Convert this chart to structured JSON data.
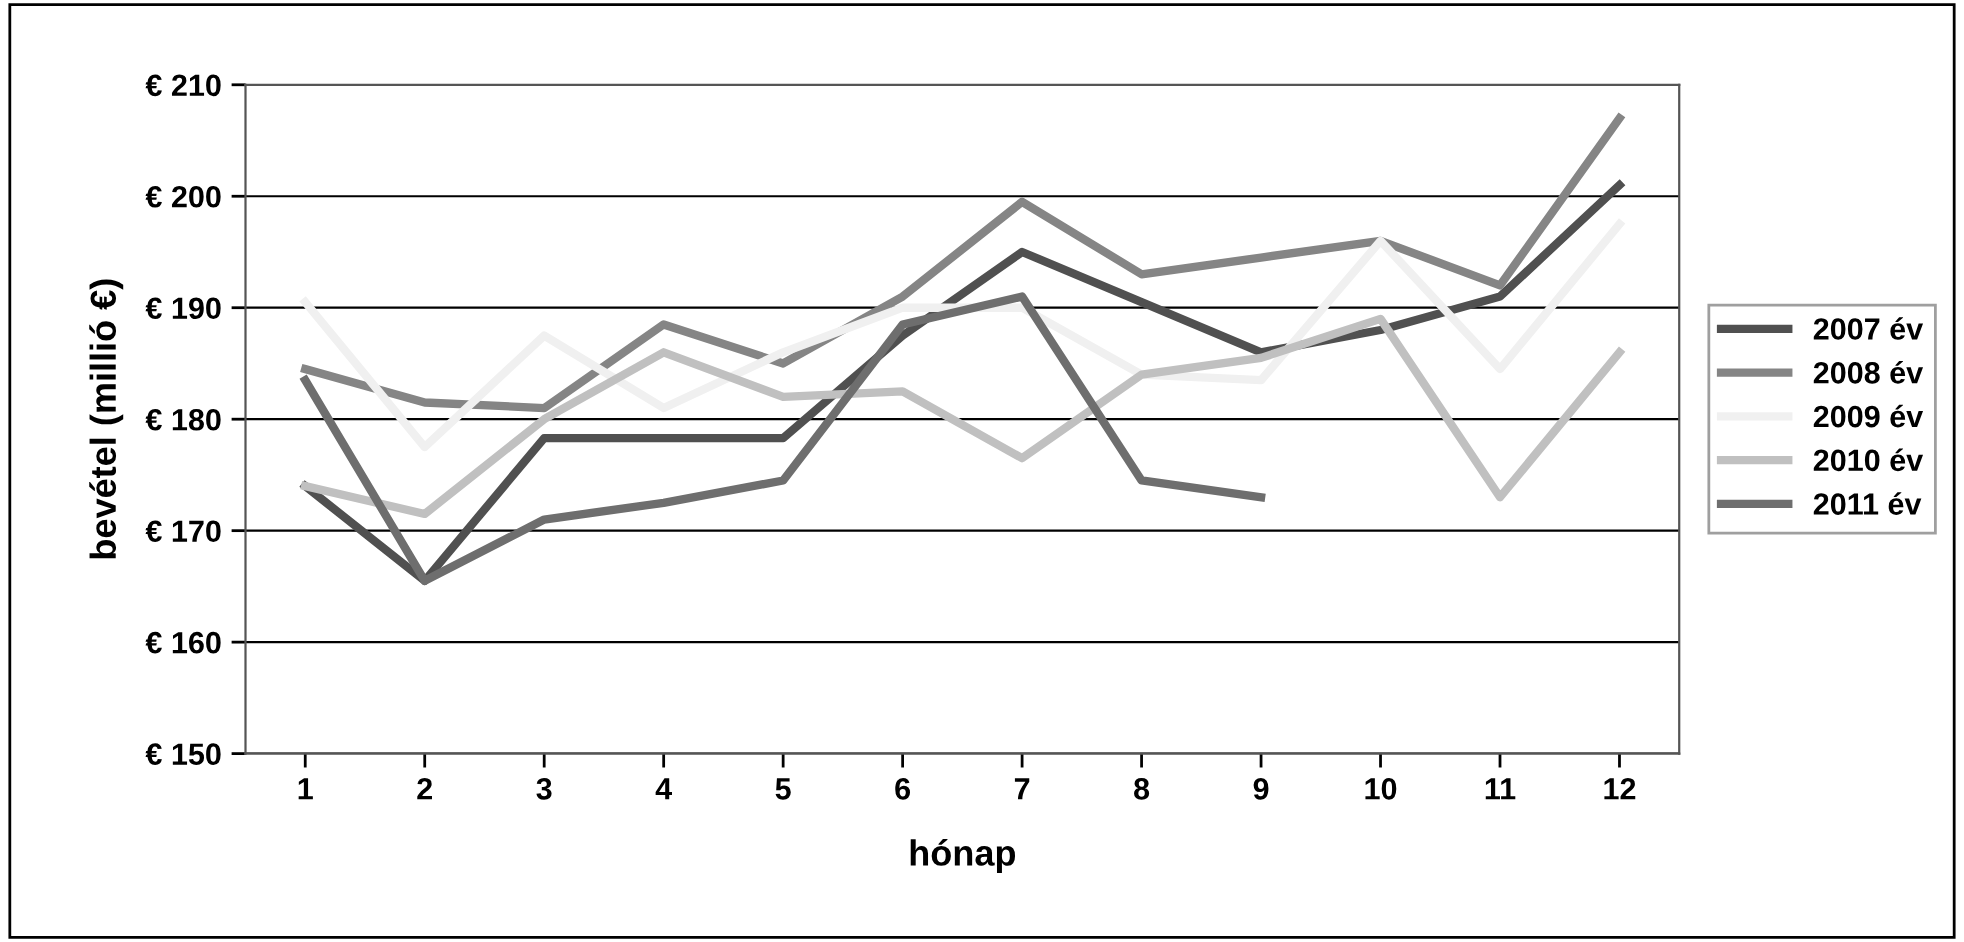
{
  "chart_data": {
    "type": "line",
    "xlabel": "hónap",
    "ylabel": "bevétel (millió €)",
    "categories": [
      "1",
      "2",
      "3",
      "4",
      "5",
      "6",
      "7",
      "8",
      "9",
      "10",
      "11",
      "12"
    ],
    "series": [
      {
        "name": "2007 év",
        "color": "#505050",
        "values": [
          174,
          165.5,
          178.3,
          178.3,
          178.3,
          187.5,
          195,
          190.5,
          186,
          188,
          191,
          201
        ]
      },
      {
        "name": "2008 év",
        "color": "#858585",
        "values": [
          184.5,
          181.5,
          181,
          188.5,
          185,
          191,
          199.5,
          193,
          194.5,
          196,
          192,
          207
        ]
      },
      {
        "name": "2009 év",
        "color": "#f0f0f0",
        "values": [
          190.5,
          177.5,
          187.5,
          181,
          186,
          190,
          190,
          184,
          183.5,
          196,
          184.5,
          197.5
        ]
      },
      {
        "name": "2010 év",
        "color": "#c0c0c0",
        "values": [
          174,
          171.5,
          180,
          186,
          182,
          182.5,
          176.5,
          184,
          185.5,
          189,
          173,
          186
        ]
      },
      {
        "name": "2011 év",
        "color": "#6e6e6e",
        "values": [
          183.5,
          165.5,
          171,
          172.5,
          174.5,
          188.5,
          191,
          174.5,
          173,
          null,
          null,
          null
        ]
      }
    ],
    "ylim": [
      150,
      210
    ],
    "yticks": [
      {
        "value": 150,
        "label": "€ 150"
      },
      {
        "value": 160,
        "label": "€ 160"
      },
      {
        "value": 170,
        "label": "€ 170"
      },
      {
        "value": 180,
        "label": "€ 180"
      },
      {
        "value": 190,
        "label": "€ 190"
      },
      {
        "value": 200,
        "label": "€ 200"
      },
      {
        "value": 210,
        "label": "€ 210"
      }
    ],
    "grid": "y",
    "legend": "right",
    "marker": "none",
    "line_style": "solid"
  }
}
